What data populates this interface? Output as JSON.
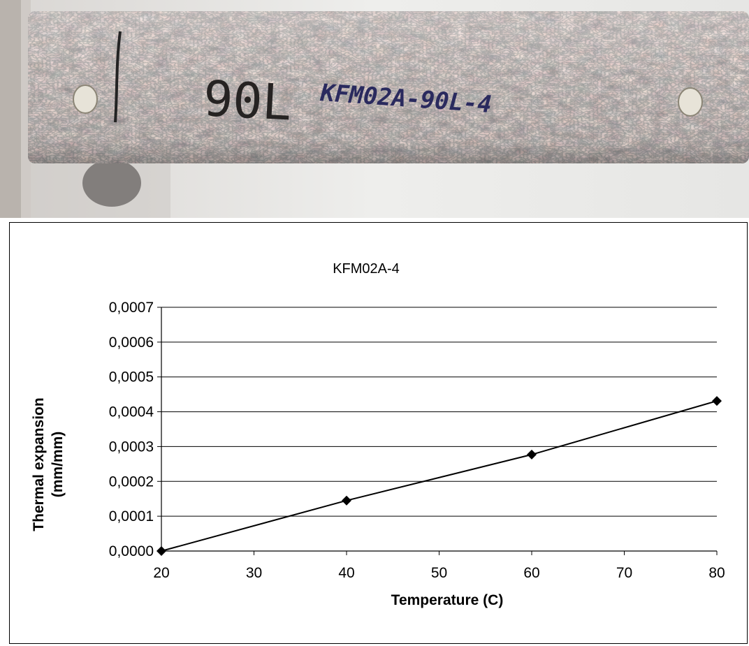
{
  "photo": {
    "core_markings": [
      "90L",
      "KFM02A-90L-4"
    ]
  },
  "chart_data": {
    "type": "line",
    "title": "KFM02A-4",
    "xlabel": "Temperature (C)",
    "ylabel": [
      "Thermal expansion",
      "(mm/mm)"
    ],
    "x": [
      20,
      40,
      60,
      80
    ],
    "series": [
      {
        "values": [
          0.0,
          0.000145,
          0.000277,
          0.000431
        ],
        "marker": "diamond",
        "color": "#000000"
      }
    ],
    "xlim": [
      20,
      80
    ],
    "ylim": [
      0,
      0.0007
    ],
    "x_ticks": [
      "20",
      "30",
      "40",
      "50",
      "60",
      "70",
      "80"
    ],
    "y_ticks": [
      "0,0000",
      "0,0001",
      "0,0002",
      "0,0003",
      "0,0004",
      "0,0005",
      "0,0006",
      "0,0007"
    ],
    "grid": "horizontal",
    "legend": "none"
  }
}
